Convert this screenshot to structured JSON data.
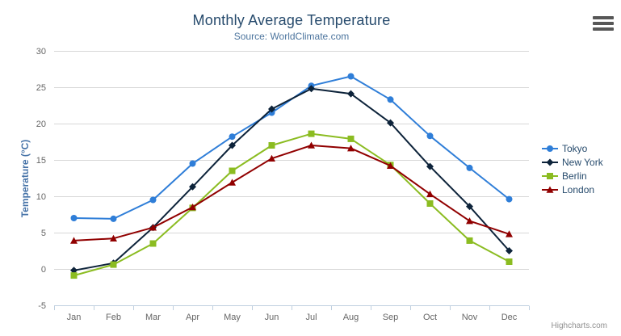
{
  "chart_data": {
    "type": "line",
    "title": "Monthly Average Temperature",
    "subtitle": "Source: WorldClimate.com",
    "ylabel": "Temperature (°C)",
    "xlabel": "",
    "ylim": [
      -5,
      30
    ],
    "yticks": [
      -5,
      0,
      5,
      10,
      15,
      20,
      25,
      30
    ],
    "grid": true,
    "legend_position": "right",
    "categories": [
      "Jan",
      "Feb",
      "Mar",
      "Apr",
      "May",
      "Jun",
      "Jul",
      "Aug",
      "Sep",
      "Oct",
      "Nov",
      "Dec"
    ],
    "series": [
      {
        "name": "Tokyo",
        "marker": "circle",
        "color": "#2f7ed8",
        "values": [
          7.0,
          6.9,
          9.5,
          14.5,
          18.2,
          21.5,
          25.2,
          26.5,
          23.3,
          18.3,
          13.9,
          9.6
        ]
      },
      {
        "name": "New York",
        "marker": "diamond",
        "color": "#0d233a",
        "values": [
          -0.2,
          0.8,
          5.7,
          11.3,
          17.0,
          22.0,
          24.8,
          24.1,
          20.1,
          14.1,
          8.6,
          2.5
        ]
      },
      {
        "name": "Berlin",
        "marker": "square",
        "color": "#8bbc21",
        "values": [
          -0.9,
          0.6,
          3.5,
          8.4,
          13.5,
          17.0,
          18.6,
          17.9,
          14.3,
          9.0,
          3.9,
          1.0
        ]
      },
      {
        "name": "London",
        "marker": "triangle",
        "color": "#910000",
        "values": [
          3.9,
          4.2,
          5.7,
          8.5,
          11.9,
          15.2,
          17.0,
          16.6,
          14.2,
          10.3,
          6.6,
          4.8
        ]
      }
    ],
    "style": {
      "title_color": "#274b6d",
      "subtitle_color": "#4d759e",
      "axis_title_color": "#4572a7",
      "tick_label_color": "#666666",
      "legend_text_color": "#274b6d",
      "grid_color": "#d8d8d8",
      "axis_line_color": "#c0d0e0",
      "background": "#ffffff"
    }
  },
  "credits": {
    "label": "Highcharts.com",
    "color": "#909090"
  }
}
